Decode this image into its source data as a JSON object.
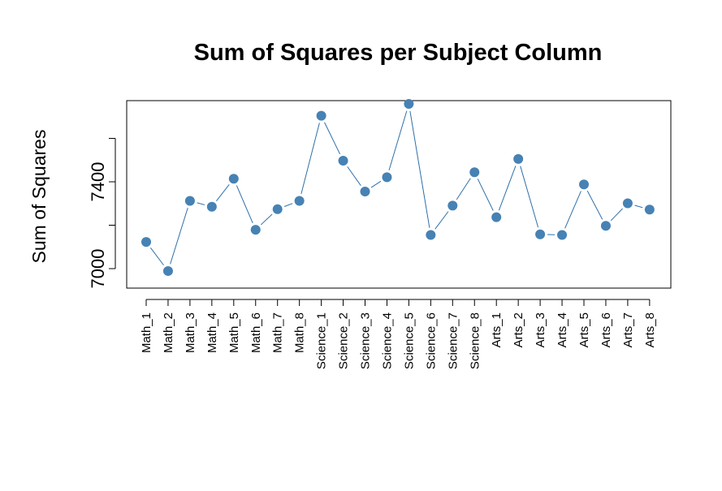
{
  "chart_data": {
    "type": "line",
    "title": "Sum of Squares per Subject Column",
    "xlabel": "",
    "ylabel": "Sum of Squares",
    "categories": [
      "Math_1",
      "Math_2",
      "Math_3",
      "Math_4",
      "Math_5",
      "Math_6",
      "Math_7",
      "Math_8",
      "Science_1",
      "Science_2",
      "Science_3",
      "Science_4",
      "Science_5",
      "Science_6",
      "Science_7",
      "Science_8",
      "Arts_1",
      "Arts_2",
      "Arts_3",
      "Arts_4",
      "Arts_5",
      "Arts_6",
      "Arts_7",
      "Arts_8"
    ],
    "values": [
      7123,
      6989,
      7312,
      7285,
      7414,
      7179,
      7274,
      7312,
      7704,
      7497,
      7355,
      7421,
      7759,
      7155,
      7290,
      7444,
      7237,
      7505,
      7158,
      7155,
      7388,
      7197,
      7301,
      7272
    ],
    "ylim": [
      6940,
      7800
    ],
    "yticks": [
      7000,
      7400
    ],
    "minor_yticks": [
      7200,
      7600
    ],
    "grid": false,
    "series_color": "#4682b4",
    "line_color": "#2f6fa8"
  }
}
